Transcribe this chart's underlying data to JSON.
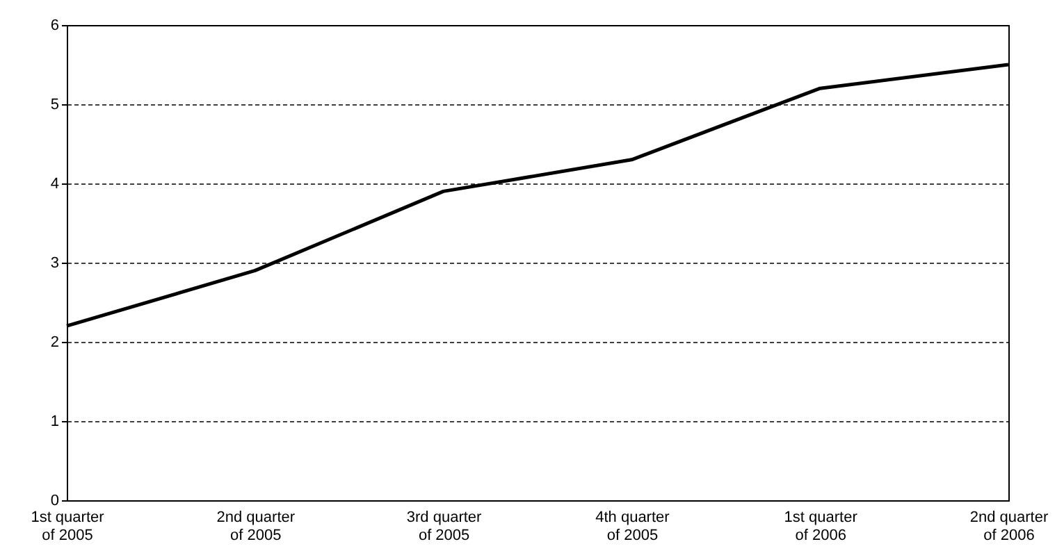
{
  "chart_data": {
    "type": "line",
    "categories": [
      "1st quarter of 2005",
      "2nd quarter of 2005",
      "3rd quarter of 2005",
      "4th quarter of 2005",
      "1st quarter of 2006",
      "2nd quarter of 2006"
    ],
    "series": [
      {
        "color": "#000000",
        "values": [
          2.2,
          2.9,
          3.9,
          4.3,
          5.2,
          5.5
        ]
      }
    ],
    "ylim": [
      0,
      6
    ],
    "yticks": [
      0,
      1,
      2,
      3,
      4,
      5,
      6
    ],
    "grid": "y",
    "line_style": "solid"
  }
}
